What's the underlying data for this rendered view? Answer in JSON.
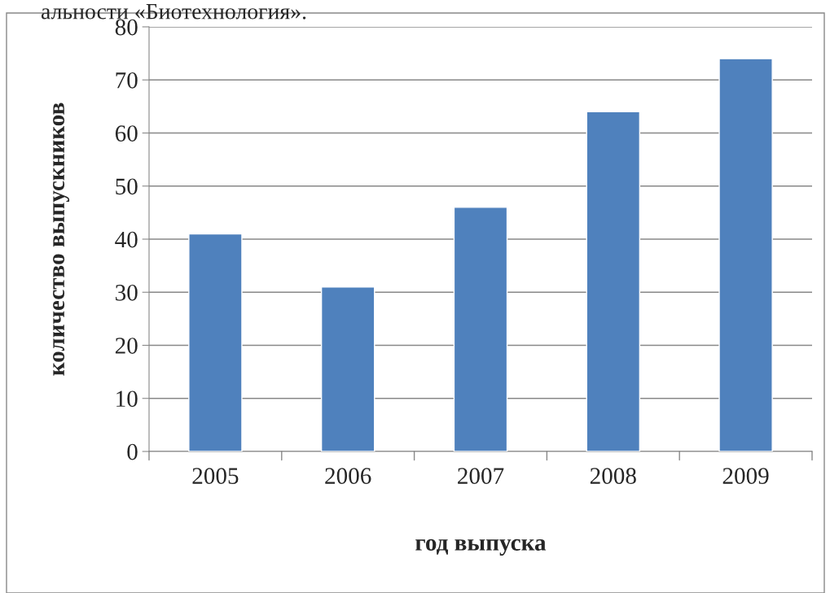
{
  "chart_data": {
    "type": "bar",
    "xlabel": "год выпуска",
    "ylabel": "количество выпускников",
    "annotations": [
      "альности «Биотехнология»."
    ],
    "categories": [
      "2005",
      "2006",
      "2007",
      "2008",
      "2009"
    ],
    "values": [
      41,
      31,
      46,
      64,
      74
    ],
    "color": "#4f81bd",
    "ylim": [
      0,
      80
    ],
    "yticks": [
      0,
      10,
      20,
      30,
      40,
      50,
      60,
      70,
      80
    ],
    "grid": "y",
    "legend": false
  }
}
